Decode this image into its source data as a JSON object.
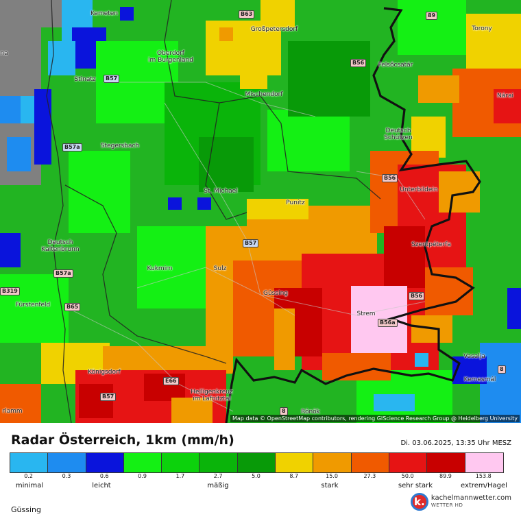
{
  "map": {
    "places": [
      {
        "name": "Kemeten"
      },
      {
        "name": "Großpetersdorf"
      },
      {
        "name": "Oberdorf\nim Burgenland"
      },
      {
        "name": "Torony"
      },
      {
        "name": "Stinatz"
      },
      {
        "name": "Felsőcsatár"
      },
      {
        "name": "Mischendorf"
      },
      {
        "name": "Nárai"
      },
      {
        "name": "Stegersbach"
      },
      {
        "name": "Deutsch\nSchützen"
      },
      {
        "name": "St. Michael"
      },
      {
        "name": "Unterbildein"
      },
      {
        "name": "Punitz"
      },
      {
        "name": "Deutsch\nKaltenbrunn"
      },
      {
        "name": "Szentpéterfa"
      },
      {
        "name": "Kukmirn"
      },
      {
        "name": "Sulz"
      },
      {
        "name": "Güssing"
      },
      {
        "name": "Fürstenfeld"
      },
      {
        "name": "Strem"
      },
      {
        "name": "Königsdorf"
      },
      {
        "name": "Vasalja"
      },
      {
        "name": "Kemesmál"
      },
      {
        "name": "Heiligenkreuz\nim Lafnitztal"
      },
      {
        "name": "Rönök"
      },
      {
        "name": "rlamm"
      },
      {
        "name": "na"
      }
    ],
    "roads": [
      {
        "label": "B63"
      },
      {
        "label": "89"
      },
      {
        "label": "B57"
      },
      {
        "label": "B56"
      },
      {
        "label": "B57a"
      },
      {
        "label": "B56"
      },
      {
        "label": "B57"
      },
      {
        "label": "B57a"
      },
      {
        "label": "B319"
      },
      {
        "label": "B65"
      },
      {
        "label": "B56"
      },
      {
        "label": "B56a"
      },
      {
        "label": "E66"
      },
      {
        "label": "B57"
      },
      {
        "label": "8"
      },
      {
        "label": "8"
      }
    ],
    "attribution": "Map data © OpenStreetMap contributors, rendering GIScience Research Group @ Heidelberg University"
  },
  "footer": {
    "title": "Radar Österreich, 1km (mm/h)",
    "datetime": "Di. 03.06.2025, 13:35 Uhr MESZ",
    "location": "Güssing",
    "brand_name": "kachelmannwetter.com",
    "brand_sub": "WETTER HD",
    "brand_logo": "k."
  },
  "legend": {
    "colors": [
      "#29b6f0",
      "#1e8cf0",
      "#0a14dc",
      "#14f014",
      "#0cd20c",
      "#0ab40a",
      "#089a08",
      "#f0d200",
      "#f09a00",
      "#f05a00",
      "#e61414",
      "#c80000",
      "#ffc8f0"
    ],
    "values": [
      "0.2",
      "0.3",
      "0.6",
      "0.9",
      "1.7",
      "2.7",
      "5.0",
      "8.7",
      "15.0",
      "27.3",
      "50.0",
      "89.9",
      "153.8"
    ],
    "categories": [
      "minimal",
      "leicht",
      "mäßig",
      "stark",
      "sehr stark",
      "extrem/Hagel"
    ]
  }
}
